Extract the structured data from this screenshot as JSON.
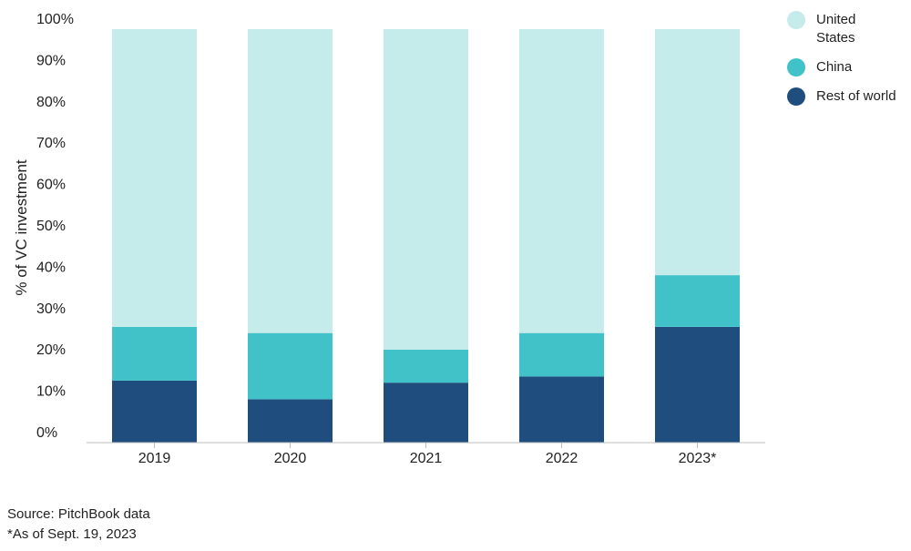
{
  "chart_data": {
    "type": "bar",
    "stacked": true,
    "categories": [
      "2019",
      "2020",
      "2021",
      "2022",
      "2023*"
    ],
    "series": [
      {
        "name": "Rest of world",
        "color": "#1f4e7e",
        "values": [
          15,
          10.5,
          14.5,
          16,
          28
        ]
      },
      {
        "name": "China",
        "color": "#40c2c8",
        "values": [
          13,
          16,
          8,
          10.5,
          12.5
        ]
      },
      {
        "name": "United States",
        "color": "#c5ecea",
        "values": [
          72,
          73.5,
          77.5,
          73.5,
          59.5
        ]
      }
    ],
    "ylabel": "% of VC investment",
    "ylim": [
      0,
      100
    ],
    "yticks": [
      "0%",
      "10%",
      "20%",
      "30%",
      "40%",
      "50%",
      "60%",
      "70%",
      "80%",
      "90%",
      "100%"
    ],
    "grid": false,
    "legend_position": "top-right"
  },
  "legend": {
    "items": [
      {
        "label": "United\nStates",
        "color": "#c5ecea"
      },
      {
        "label": "China",
        "color": "#40c2c8"
      },
      {
        "label": "Rest of world",
        "color": "#1f4e7e"
      }
    ]
  },
  "footnotes": {
    "source": "Source: PitchBook data",
    "asof": "*As of Sept. 19, 2023"
  }
}
